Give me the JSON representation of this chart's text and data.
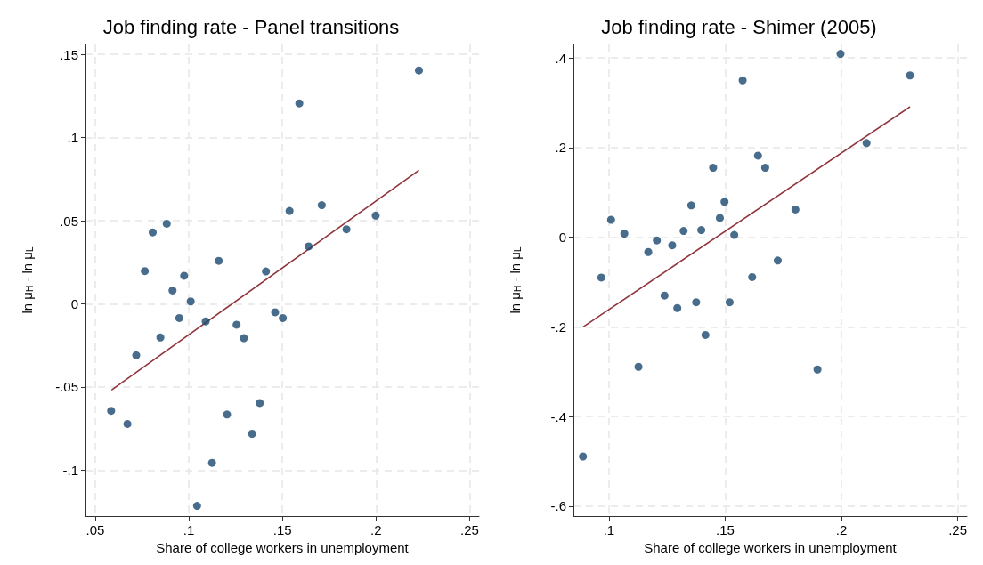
{
  "chart_data": [
    {
      "type": "scatter",
      "title": "Job finding rate - Panel transitions",
      "xlabel": "Share of college workers in unemployment",
      "ylabel": "ln μ$_{H}$ - ln μ$_{L}$",
      "xlim": [
        0.0448,
        0.255
      ],
      "ylim": [
        -0.1276,
        0.156
      ],
      "xticks": [
        {
          "value": 0.05,
          "label": ".05"
        },
        {
          "value": 0.1,
          "label": ".1"
        },
        {
          "value": 0.15,
          "label": ".15"
        },
        {
          "value": 0.2,
          "label": ".2"
        },
        {
          "value": 0.25,
          "label": ".25"
        }
      ],
      "yticks": [
        {
          "value": -0.1,
          "label": "-.1"
        },
        {
          "value": -0.05,
          "label": "-.05"
        },
        0,
        {
          "value": 0.05,
          "label": ".05"
        },
        {
          "value": 0.1,
          "label": ".1"
        },
        {
          "value": 0.15,
          "label": ".15"
        }
      ],
      "grid": true,
      "series": [
        {
          "marker": "circle",
          "color": "#1a476f",
          "x": [
            0.2229,
            0.159,
            0.1538,
            0.171,
            0.1998,
            0.1842,
            0.164,
            0.1412,
            0.116,
            0.0882,
            0.0807,
            0.0765,
            0.0975,
            0.0913,
            0.101,
            0.0949,
            0.109,
            0.0848,
            0.0719,
            0.1255,
            0.1294,
            0.1461,
            0.1502,
            0.0585,
            0.0672,
            0.1204,
            0.1379,
            0.1338,
            0.1124,
            0.1044
          ],
          "values": [
            0.1404,
            0.1206,
            0.0559,
            0.0594,
            0.0531,
            0.0449,
            0.0346,
            0.0195,
            0.0259,
            0.0482,
            0.043,
            0.0197,
            0.0169,
            0.0081,
            0.0015,
            -0.0085,
            -0.0105,
            -0.0202,
            -0.0309,
            -0.0125,
            -0.0206,
            -0.005,
            -0.0085,
            -0.0643,
            -0.0722,
            -0.0665,
            -0.0596,
            -0.0781,
            -0.0956,
            -0.1215
          ]
        },
        {
          "type": "line",
          "color": "#90353b",
          "x": [
            0.0587,
            0.2229
          ],
          "values": [
            -0.0518,
            0.0803
          ]
        }
      ]
    },
    {
      "type": "scatter",
      "title": "Job finding rate - Shimer (2005)",
      "xlabel": "Share of college workers in unemployment",
      "ylabel": "ln μ$_{H}$ - ln μ$_{L}$",
      "xlim": [
        0.0847,
        0.254
      ],
      "ylim": [
        -0.622,
        0.43
      ],
      "xticks": [
        {
          "value": 0.1,
          "label": ".1"
        },
        {
          "value": 0.15,
          "label": ".15"
        },
        {
          "value": 0.2,
          "label": ".2"
        },
        {
          "value": 0.25,
          "label": ".25"
        }
      ],
      "yticks": [
        {
          "value": -0.6,
          "label": "-.6"
        },
        {
          "value": -0.4,
          "label": "-.4"
        },
        {
          "value": -0.2,
          "label": "-.2"
        },
        0,
        {
          "value": 0.2,
          "label": ".2"
        },
        {
          "value": 0.4,
          "label": ".4"
        }
      ],
      "grid": true,
      "series": [
        {
          "marker": "circle",
          "color": "#1a476f",
          "x": [
            0.1996,
            0.2295,
            0.1575,
            0.2108,
            0.1641,
            0.1672,
            0.1448,
            0.1354,
            0.1497,
            0.1477,
            0.1802,
            0.1009,
            0.1066,
            0.1321,
            0.1397,
            0.1539,
            0.1206,
            0.1272,
            0.1169,
            0.1726,
            0.0967,
            0.1616,
            0.1239,
            0.1294,
            0.1375,
            0.1519,
            0.1415,
            0.1127,
            0.1897,
            0.0888
          ],
          "values": [
            0.409,
            0.361,
            0.35,
            0.21,
            0.182,
            0.155,
            0.155,
            0.071,
            0.079,
            0.043,
            0.062,
            0.039,
            0.008,
            0.014,
            0.016,
            0.005,
            -0.007,
            -0.018,
            -0.033,
            -0.052,
            -0.09,
            -0.089,
            -0.13,
            -0.158,
            -0.145,
            -0.145,
            -0.218,
            -0.289,
            -0.295,
            -0.489
          ]
        },
        {
          "type": "line",
          "color": "#90353b",
          "x": [
            0.0889,
            0.2295
          ],
          "values": [
            -0.2,
            0.291
          ]
        }
      ]
    }
  ]
}
